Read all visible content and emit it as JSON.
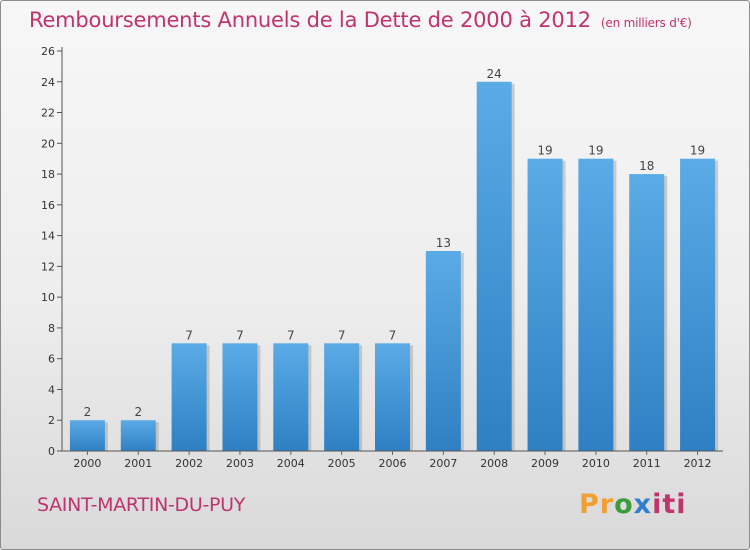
{
  "title": "Remboursements Annuels de la Dette de 2000 à 2012",
  "unit_label": "(en milliers d'€)",
  "commune": "SAINT-MARTIN-DU-PUY",
  "logo": {
    "name": "Proxiti",
    "parts": [
      "Pr",
      "o",
      "x",
      "iti"
    ],
    "colors": [
      "#f0a030",
      "#3c9b3c",
      "#2f7fcf",
      "#c0336e"
    ]
  },
  "colors": {
    "title": "#c0336e",
    "bar_light": "#5aabe6",
    "bar_dark": "#2e80c3",
    "axis": "#444444"
  },
  "chart_data": {
    "type": "bar",
    "title": "Remboursements Annuels de la Dette de 2000 à 2012",
    "subtitle": "(en milliers d'€)",
    "categories": [
      "2000",
      "2001",
      "2002",
      "2003",
      "2004",
      "2005",
      "2006",
      "2007",
      "2008",
      "2009",
      "2010",
      "2011",
      "2012"
    ],
    "values": [
      2,
      2,
      7,
      7,
      7,
      7,
      7,
      13,
      24,
      19,
      19,
      18,
      19
    ],
    "data_labels": [
      "2",
      "2",
      "7",
      "7",
      "7",
      "7",
      "7",
      "13",
      "24",
      "19",
      "19",
      "18",
      "19"
    ],
    "ylim": [
      0,
      26
    ],
    "yticks": [
      0,
      2,
      4,
      6,
      8,
      10,
      12,
      14,
      16,
      18,
      20,
      22,
      24,
      26
    ],
    "xlabel": "",
    "ylabel": "",
    "grid": false,
    "legend": "none"
  }
}
